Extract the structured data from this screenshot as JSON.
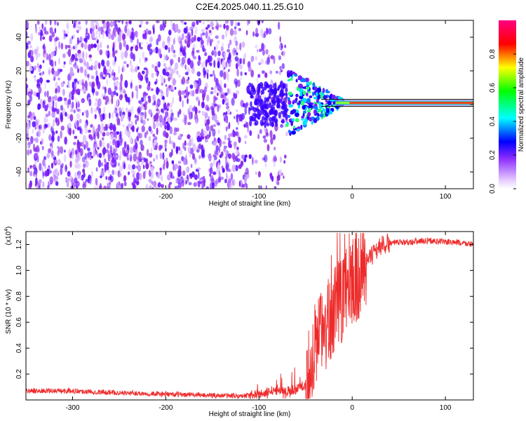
{
  "figure": {
    "title": "C2E4.2025.040.11.25.G10"
  },
  "chart_data": [
    {
      "type": "heatmap",
      "xlabel": "Height of straight line (km)",
      "ylabel": "Frequency (Hz)",
      "xlim": [
        -350,
        130
      ],
      "ylim": [
        -50,
        50
      ],
      "xticks": [
        -300,
        -200,
        -100,
        0,
        100
      ],
      "yticks": [
        -40,
        -20,
        0,
        20,
        40
      ],
      "colorbar": {
        "label": "Normalized spectral amplitude",
        "range": [
          0,
          1
        ],
        "ticks": [
          "0.0",
          "0.2",
          "0.4",
          "0.6",
          "0.8"
        ],
        "colormap": [
          "#ffffff",
          "#9a3cff",
          "#0000ff",
          "#00ffff",
          "#00ff00",
          "#ffff00",
          "#ff0000",
          "#ff0080"
        ]
      },
      "description_values": {
        "noise_region_x": [
          -350,
          -70
        ],
        "noise_amplitude": 0.15,
        "transition_x": [
          -70,
          -10
        ],
        "tone_x": [
          -10,
          130
        ],
        "tone_frequency_hz": 1,
        "tone_amplitude": 0.9
      }
    },
    {
      "type": "line",
      "xlabel": "Height of straight line (km)",
      "ylabel": "SNR (10 * v/v)",
      "yscale_label": "(x10",
      "yscale_exp": "4",
      "xlim": [
        -350,
        130
      ],
      "ylim": [
        0,
        1.3
      ],
      "xticks": [
        -300,
        -200,
        -100,
        0,
        100
      ],
      "yticks": [
        "0.2",
        "0.4",
        "0.6",
        "0.8",
        "1.0",
        "1.2"
      ],
      "series": [
        {
          "color": "#ee2a2a",
          "points": [
            [
              -350,
              0.07
            ],
            [
              -300,
              0.07
            ],
            [
              -250,
              0.055
            ],
            [
              -200,
              0.045
            ],
            [
              -150,
              0.035
            ],
            [
              -120,
              0.03
            ],
            [
              -100,
              0.04
            ],
            [
              -90,
              0.06
            ],
            [
              -80,
              0.08
            ],
            [
              -70,
              0.07
            ],
            [
              -60,
              0.08
            ],
            [
              -50,
              0.12
            ],
            [
              -45,
              0.25
            ],
            [
              -40,
              0.4
            ],
            [
              -35,
              0.5
            ],
            [
              -30,
              0.55
            ],
            [
              -25,
              0.6
            ],
            [
              -20,
              0.68
            ],
            [
              -15,
              0.75
            ],
            [
              -10,
              0.8
            ],
            [
              -5,
              0.85
            ],
            [
              0,
              0.9
            ],
            [
              5,
              0.95
            ],
            [
              10,
              1.0
            ],
            [
              15,
              1.05
            ],
            [
              20,
              1.1
            ],
            [
              25,
              1.15
            ],
            [
              30,
              1.19
            ],
            [
              40,
              1.21
            ],
            [
              60,
              1.22
            ],
            [
              80,
              1.23
            ],
            [
              100,
              1.22
            ],
            [
              120,
              1.21
            ],
            [
              130,
              1.2
            ]
          ]
        }
      ]
    }
  ]
}
